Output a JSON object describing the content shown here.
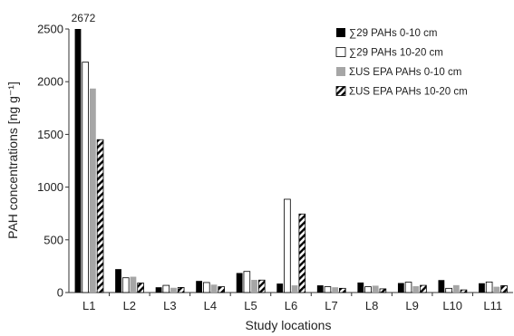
{
  "chart_data": {
    "type": "bar",
    "title": "",
    "xlabel": "Study locations",
    "ylabel": "PAH concentrations [ng g⁻¹]",
    "ylim": [
      0,
      2500
    ],
    "yticks": [
      "0",
      "500",
      "1000",
      "1500",
      "2000",
      "2500"
    ],
    "categories": [
      "L1",
      "L2",
      "L3",
      "L4",
      "L5",
      "L6",
      "L7",
      "L8",
      "L9",
      "L10",
      "L11"
    ],
    "series": [
      {
        "name": "∑29 PAHs 0-10 cm",
        "color": "#000000",
        "pattern": "solid",
        "values": [
          2672,
          222,
          50,
          110,
          185,
          85,
          68,
          95,
          90,
          118,
          88
        ]
      },
      {
        "name": "∑29 PAHs 10-20 cm",
        "color": "#ffffff",
        "pattern": "hollow",
        "values": [
          2185,
          140,
          68,
          95,
          200,
          885,
          55,
          55,
          98,
          40,
          100
        ]
      },
      {
        "name": "ΣUS EPA PAHs 0-10 cm",
        "color": "#a6a6a6",
        "pattern": "solid",
        "values": [
          1935,
          150,
          45,
          75,
          120,
          68,
          50,
          65,
          60,
          70,
          55
        ]
      },
      {
        "name": "ΣUS EPA PAHs 10-20 cm",
        "color": "#000000",
        "pattern": "hatch",
        "values": [
          1450,
          90,
          48,
          55,
          118,
          745,
          40,
          35,
          68,
          25,
          65
        ]
      }
    ],
    "annotations": [
      {
        "text": "2672",
        "category": "L1",
        "series": 0
      }
    ],
    "legend": "top-right",
    "grid": false
  }
}
